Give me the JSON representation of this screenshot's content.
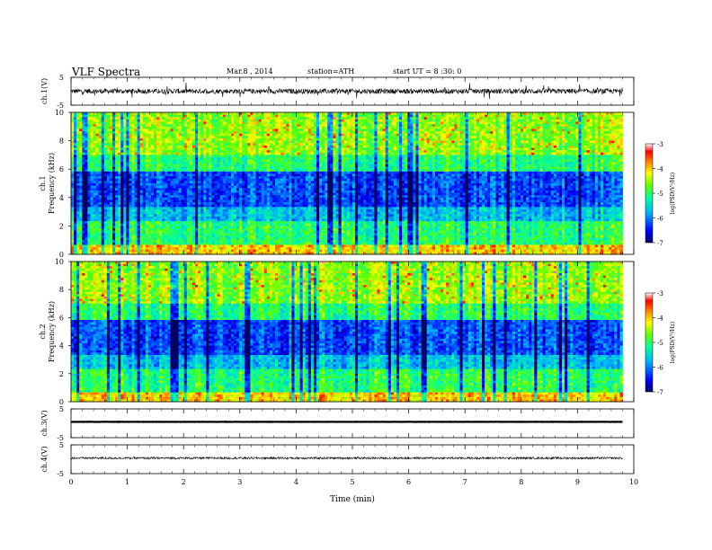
{
  "header": {
    "title": "VLF Spectra",
    "date": "Mar.8 , 2014",
    "station": "station=ATH",
    "start": "start UT = 8 :30: 0"
  },
  "chart_data": [
    {
      "type": "line",
      "panel": "ch1-waveform",
      "ylabel": "ch.1(V)",
      "xlim": [
        0,
        10
      ],
      "ylim": [
        -5,
        5
      ],
      "yticks": [
        "5",
        "-5"
      ],
      "x_end": 9.8,
      "baseline": 0,
      "noise_amplitude": 0.9,
      "spike_amplitude": 2.5,
      "color": "#000000"
    },
    {
      "type": "heatmap",
      "panel": "ch1-spectrogram",
      "ylabel": "ch.1 Frequency (kHz)",
      "xlim": [
        0,
        10
      ],
      "ylim": [
        0,
        10
      ],
      "yticks": [
        "0",
        "2",
        "4",
        "6",
        "8",
        "10"
      ],
      "x_end": 9.8,
      "colorbar": {
        "label": "log(PSD(V²/Hz)",
        "range": [
          -7,
          -3
        ],
        "ticks": [
          "-3",
          "-4",
          "-5",
          "-6",
          "-7"
        ]
      }
    },
    {
      "type": "heatmap",
      "panel": "ch2-spectrogram",
      "ylabel": "ch.2 Frequency (kHz)",
      "xlim": [
        0,
        10
      ],
      "ylim": [
        0,
        10
      ],
      "yticks": [
        "0",
        "2",
        "4",
        "6",
        "8",
        "10"
      ],
      "x_end": 9.8,
      "colorbar": {
        "label": "log(PSD(V²/Hz)",
        "range": [
          -7,
          -3
        ],
        "ticks": [
          "-3",
          "-4",
          "-5",
          "-6",
          "-7"
        ]
      }
    },
    {
      "type": "line",
      "panel": "ch3-waveform",
      "ylabel": "ch.3(V)",
      "xlim": [
        0,
        10
      ],
      "ylim": [
        -5,
        5
      ],
      "yticks": [
        "5",
        "-5"
      ],
      "x_end": 9.8,
      "baseline": 0.5,
      "noise_amplitude": 0.05,
      "color": "#000000"
    },
    {
      "type": "line",
      "panel": "ch4-waveform",
      "ylabel": "ch.4(V)",
      "xlim": [
        0,
        10
      ],
      "ylim": [
        -5,
        5
      ],
      "yticks": [
        "5",
        "-5"
      ],
      "x_end": 9.8,
      "baseline": 0.4,
      "noise_amplitude": 0.35,
      "color": "#000000"
    }
  ],
  "xaxis": {
    "label": "Time (min)",
    "ticks": [
      "0",
      "1",
      "2",
      "3",
      "4",
      "5",
      "6",
      "7",
      "8",
      "9",
      "10"
    ]
  }
}
